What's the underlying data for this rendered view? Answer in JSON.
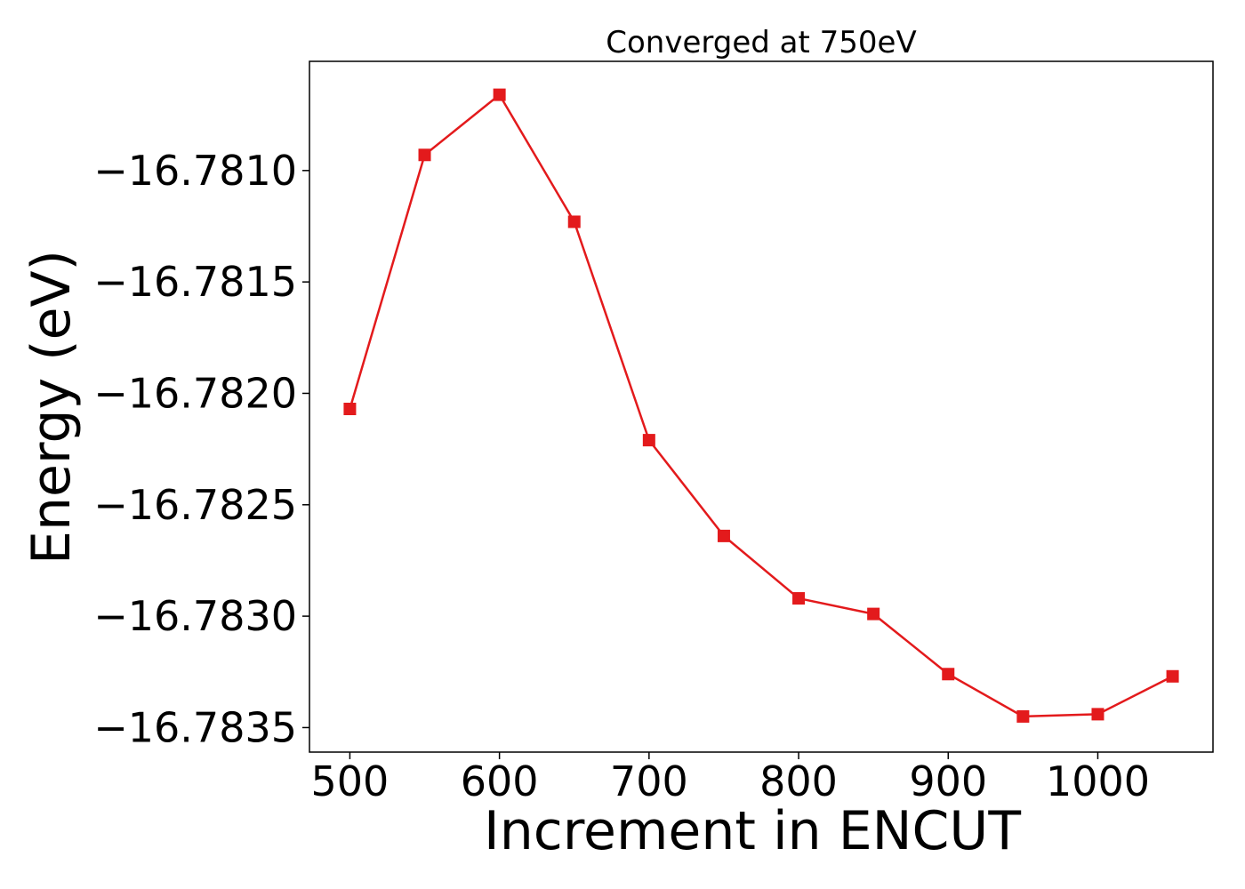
{
  "chart_data": {
    "type": "line",
    "title": "Converged at 750eV",
    "xlabel": "Increment in ENCUT",
    "ylabel": "Energy (eV)",
    "x": [
      500,
      550,
      600,
      650,
      700,
      750,
      800,
      850,
      900,
      950,
      1000,
      1050
    ],
    "series": [
      {
        "values": [
          -16.78207,
          -16.78093,
          -16.78066,
          -16.78123,
          -16.78221,
          -16.78264,
          -16.78292,
          -16.78299,
          -16.78326,
          -16.78345,
          -16.78344,
          -16.78327
        ],
        "color": "#e31a1c",
        "marker": "square"
      }
    ],
    "xticks": [
      500,
      600,
      700,
      800,
      900,
      1000
    ],
    "xtick_labels": [
      "500",
      "600",
      "700",
      "800",
      "900",
      "1000"
    ],
    "yticks": [
      -16.781,
      -16.7815,
      -16.782,
      -16.7825,
      -16.783,
      -16.7835
    ],
    "ytick_labels": [
      "−16.7810",
      "−16.7815",
      "−16.7820",
      "−16.7825",
      "−16.7830",
      "−16.7835"
    ],
    "xlim": [
      473,
      1077
    ],
    "ylim": [
      -16.78361,
      -16.78051
    ],
    "grid": false,
    "legend": "none"
  }
}
